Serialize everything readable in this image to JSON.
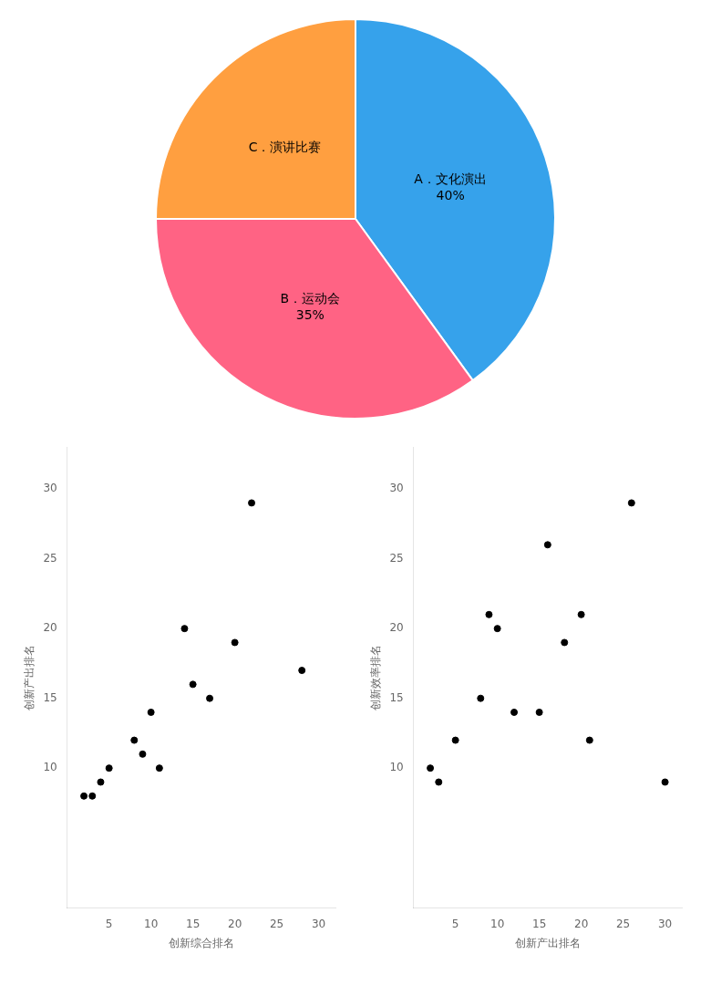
{
  "chart_data": [
    {
      "type": "pie",
      "categories": [
        "A．文化演出",
        "B．运动会",
        "C．演讲比赛"
      ],
      "values": [
        40,
        35,
        25
      ],
      "value_labels": [
        "40%",
        "35%",
        null
      ],
      "data_labels": true
    },
    {
      "type": "scatter",
      "x_label": "创新综合排名",
      "y_label": "创新产出排名",
      "x": [
        2,
        3,
        4,
        5,
        8,
        9,
        10,
        11,
        14,
        15,
        17,
        20,
        22,
        28
      ],
      "values": [
        8,
        8,
        9,
        10,
        12,
        11,
        14,
        10,
        20,
        16,
        15,
        19,
        29,
        17
      ],
      "color": "#000000",
      "xlim": [
        0,
        32
      ],
      "ylim": [
        0,
        33
      ],
      "xticks": [
        5,
        10,
        15,
        20,
        25,
        30
      ],
      "yticks": [
        10,
        15,
        20,
        25,
        30
      ],
      "grid": false
    },
    {
      "type": "scatter",
      "x_label": "创新产出排名",
      "y_label": "创新效率排名",
      "x": [
        2,
        3,
        5,
        8,
        9,
        10,
        12,
        15,
        16,
        18,
        20,
        21,
        26,
        30
      ],
      "values": [
        10,
        9,
        12,
        15,
        21,
        20,
        14,
        14,
        26,
        19,
        21,
        12,
        29,
        9
      ],
      "color": "#000000",
      "xlim": [
        0,
        32
      ],
      "ylim": [
        0,
        33
      ],
      "xticks": [
        5,
        10,
        15,
        20,
        25,
        30
      ],
      "yticks": [
        10,
        15,
        20,
        25,
        30
      ],
      "grid": false
    }
  ]
}
